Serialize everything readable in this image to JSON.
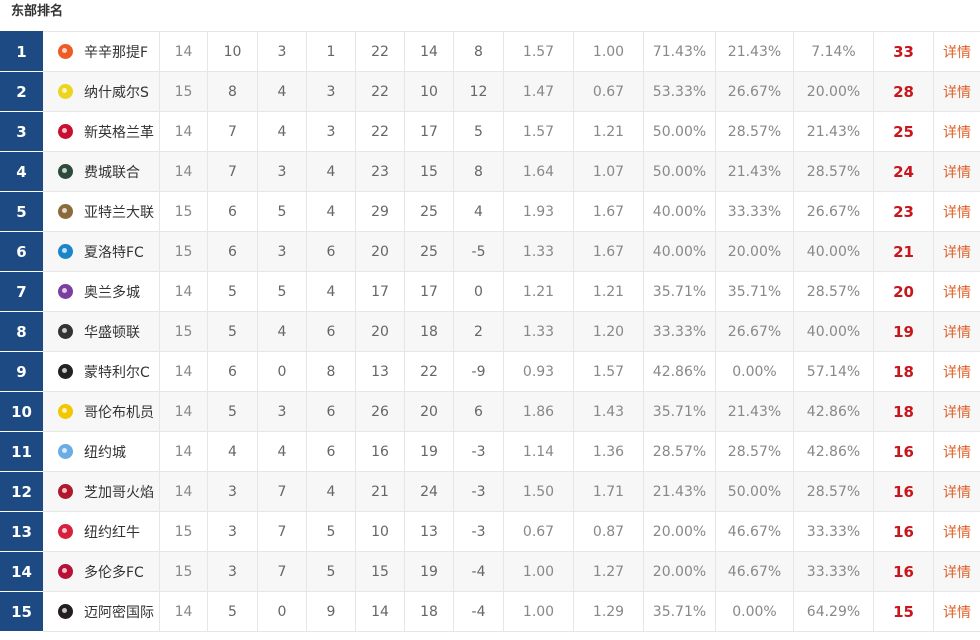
{
  "section_title": "东部排名",
  "detail_label": "详情",
  "rows": [
    {
      "rank": "1",
      "team": "辛辛那提F",
      "logo_color": "#f05a24",
      "played": "14",
      "w": "10",
      "d": "3",
      "l": "1",
      "gf": "22",
      "ga": "14",
      "gd": "8",
      "avg_gf": "1.57",
      "avg_ga": "1.00",
      "win_pct": "71.43%",
      "draw_pct": "21.43%",
      "loss_pct": "7.14%",
      "pts": "33"
    },
    {
      "rank": "2",
      "team": "纳什威尔S",
      "logo_color": "#ecd41f",
      "played": "15",
      "w": "8",
      "d": "4",
      "l": "3",
      "gf": "22",
      "ga": "10",
      "gd": "12",
      "avg_gf": "1.47",
      "avg_ga": "0.67",
      "win_pct": "53.33%",
      "draw_pct": "26.67%",
      "loss_pct": "20.00%",
      "pts": "28"
    },
    {
      "rank": "3",
      "team": "新英格兰革",
      "logo_color": "#c8102e",
      "played": "14",
      "w": "7",
      "d": "4",
      "l": "3",
      "gf": "22",
      "ga": "17",
      "gd": "5",
      "avg_gf": "1.57",
      "avg_ga": "1.21",
      "win_pct": "50.00%",
      "draw_pct": "28.57%",
      "loss_pct": "21.43%",
      "pts": "25"
    },
    {
      "rank": "4",
      "team": "费城联合",
      "logo_color": "#2e4a3c",
      "played": "14",
      "w": "7",
      "d": "3",
      "l": "4",
      "gf": "23",
      "ga": "15",
      "gd": "8",
      "avg_gf": "1.64",
      "avg_ga": "1.07",
      "win_pct": "50.00%",
      "draw_pct": "21.43%",
      "loss_pct": "28.57%",
      "pts": "24"
    },
    {
      "rank": "5",
      "team": "亚特兰大联",
      "logo_color": "#8a6b3a",
      "played": "15",
      "w": "6",
      "d": "5",
      "l": "4",
      "gf": "29",
      "ga": "25",
      "gd": "4",
      "avg_gf": "1.93",
      "avg_ga": "1.67",
      "win_pct": "40.00%",
      "draw_pct": "33.33%",
      "loss_pct": "26.67%",
      "pts": "23"
    },
    {
      "rank": "6",
      "team": "夏洛特FC",
      "logo_color": "#1a85c8",
      "played": "15",
      "w": "6",
      "d": "3",
      "l": "6",
      "gf": "20",
      "ga": "25",
      "gd": "-5",
      "avg_gf": "1.33",
      "avg_ga": "1.67",
      "win_pct": "40.00%",
      "draw_pct": "20.00%",
      "loss_pct": "40.00%",
      "pts": "21"
    },
    {
      "rank": "7",
      "team": "奥兰多城",
      "logo_color": "#7b3fa0",
      "played": "14",
      "w": "5",
      "d": "5",
      "l": "4",
      "gf": "17",
      "ga": "17",
      "gd": "0",
      "avg_gf": "1.21",
      "avg_ga": "1.21",
      "win_pct": "35.71%",
      "draw_pct": "35.71%",
      "loss_pct": "28.57%",
      "pts": "20"
    },
    {
      "rank": "8",
      "team": "华盛顿联",
      "logo_color": "#333333",
      "played": "15",
      "w": "5",
      "d": "4",
      "l": "6",
      "gf": "20",
      "ga": "18",
      "gd": "2",
      "avg_gf": "1.33",
      "avg_ga": "1.20",
      "win_pct": "33.33%",
      "draw_pct": "26.67%",
      "loss_pct": "40.00%",
      "pts": "19"
    },
    {
      "rank": "9",
      "team": "蒙特利尔C",
      "logo_color": "#222222",
      "played": "14",
      "w": "6",
      "d": "0",
      "l": "8",
      "gf": "13",
      "ga": "22",
      "gd": "-9",
      "avg_gf": "0.93",
      "avg_ga": "1.57",
      "win_pct": "42.86%",
      "draw_pct": "0.00%",
      "loss_pct": "57.14%",
      "pts": "18"
    },
    {
      "rank": "10",
      "team": "哥伦布机员",
      "logo_color": "#f2c700",
      "played": "14",
      "w": "5",
      "d": "3",
      "l": "6",
      "gf": "26",
      "ga": "20",
      "gd": "6",
      "avg_gf": "1.86",
      "avg_ga": "1.43",
      "win_pct": "35.71%",
      "draw_pct": "21.43%",
      "loss_pct": "42.86%",
      "pts": "18"
    },
    {
      "rank": "11",
      "team": "纽约城",
      "logo_color": "#6cace4",
      "played": "14",
      "w": "4",
      "d": "4",
      "l": "6",
      "gf": "16",
      "ga": "19",
      "gd": "-3",
      "avg_gf": "1.14",
      "avg_ga": "1.36",
      "win_pct": "28.57%",
      "draw_pct": "28.57%",
      "loss_pct": "42.86%",
      "pts": "16"
    },
    {
      "rank": "12",
      "team": "芝加哥火焰",
      "logo_color": "#b0192b",
      "played": "14",
      "w": "3",
      "d": "7",
      "l": "4",
      "gf": "21",
      "ga": "24",
      "gd": "-3",
      "avg_gf": "1.50",
      "avg_ga": "1.71",
      "win_pct": "21.43%",
      "draw_pct": "50.00%",
      "loss_pct": "28.57%",
      "pts": "16"
    },
    {
      "rank": "13",
      "team": "纽约红牛",
      "logo_color": "#d6203c",
      "played": "15",
      "w": "3",
      "d": "7",
      "l": "5",
      "gf": "10",
      "ga": "13",
      "gd": "-3",
      "avg_gf": "0.67",
      "avg_ga": "0.87",
      "win_pct": "20.00%",
      "draw_pct": "46.67%",
      "loss_pct": "33.33%",
      "pts": "16"
    },
    {
      "rank": "14",
      "team": "多伦多FC",
      "logo_color": "#b81137",
      "played": "15",
      "w": "3",
      "d": "7",
      "l": "5",
      "gf": "15",
      "ga": "19",
      "gd": "-4",
      "avg_gf": "1.00",
      "avg_ga": "1.27",
      "win_pct": "20.00%",
      "draw_pct": "46.67%",
      "loss_pct": "33.33%",
      "pts": "16"
    },
    {
      "rank": "15",
      "team": "迈阿密国际",
      "logo_color": "#231f20",
      "played": "14",
      "w": "5",
      "d": "0",
      "l": "9",
      "gf": "14",
      "ga": "18",
      "gd": "-4",
      "avg_gf": "1.00",
      "avg_ga": "1.29",
      "win_pct": "35.71%",
      "draw_pct": "0.00%",
      "loss_pct": "64.29%",
      "pts": "15"
    }
  ]
}
